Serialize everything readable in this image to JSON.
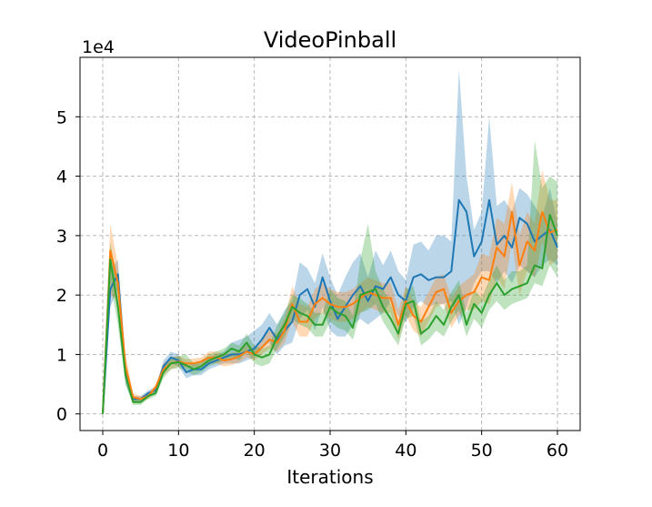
{
  "chart_data": {
    "type": "line",
    "title": "VideoPinball",
    "xlabel": "Iterations",
    "ylabel": "",
    "y_multiplier_label": "1e4",
    "xlim": [
      -3,
      63
    ],
    "ylim": [
      -2800,
      60000
    ],
    "xticks": [
      0,
      10,
      20,
      30,
      40,
      50,
      60
    ],
    "yticks": [
      0,
      10000,
      20000,
      30000,
      40000,
      50000
    ],
    "ytick_labels": [
      "0",
      "1",
      "2",
      "3",
      "4",
      "5"
    ],
    "grid": true,
    "series": [
      {
        "name": "series-blue",
        "color": "#1f77b4",
        "x": [
          0,
          1,
          2,
          3,
          4,
          5,
          6,
          7,
          8,
          9,
          10,
          11,
          12,
          13,
          14,
          15,
          16,
          17,
          18,
          19,
          20,
          21,
          22,
          23,
          24,
          25,
          26,
          27,
          28,
          29,
          30,
          31,
          32,
          33,
          34,
          35,
          36,
          37,
          38,
          39,
          40,
          41,
          42,
          43,
          44,
          45,
          46,
          47,
          48,
          49,
          50,
          51,
          52,
          53,
          54,
          55,
          56,
          57,
          58,
          59,
          60
        ],
        "values": [
          0,
          21000,
          23500,
          7000,
          2500,
          2500,
          3500,
          4000,
          8000,
          9500,
          9000,
          7000,
          7500,
          7500,
          8500,
          9000,
          9500,
          10000,
          10000,
          10500,
          11000,
          12500,
          14500,
          12500,
          14000,
          15500,
          20000,
          21000,
          18000,
          23000,
          19000,
          16000,
          18000,
          20000,
          21500,
          19000,
          21500,
          21000,
          23000,
          20000,
          19000,
          23000,
          23500,
          22500,
          23000,
          23000,
          24000,
          36000,
          34000,
          26500,
          29000,
          36000,
          28500,
          30000,
          28000,
          33000,
          32000,
          29000,
          30000,
          31000,
          28000
        ],
        "lower": [
          0,
          18000,
          21000,
          5000,
          2000,
          2000,
          3000,
          3500,
          7000,
          8500,
          8000,
          6000,
          6500,
          6500,
          7500,
          8000,
          8500,
          8500,
          8500,
          9000,
          9500,
          11000,
          12000,
          10000,
          11500,
          12000,
          16000,
          17500,
          14000,
          18000,
          14000,
          13000,
          13000,
          15000,
          16000,
          15000,
          16000,
          17000,
          19000,
          16500,
          15500,
          18000,
          19000,
          18000,
          18500,
          18500,
          19000,
          15000,
          18000,
          22000,
          24000,
          24000,
          22000,
          24000,
          22000,
          25000,
          24000,
          23000,
          25000,
          26000,
          25000
        ],
        "upper": [
          0,
          24000,
          26000,
          9000,
          3000,
          3000,
          4000,
          4500,
          9000,
          10500,
          10000,
          8000,
          8500,
          8500,
          9500,
          10000,
          10500,
          12000,
          12500,
          13000,
          14000,
          15000,
          17000,
          15000,
          17500,
          19000,
          25500,
          24500,
          22000,
          27000,
          23000,
          20000,
          23000,
          25500,
          27000,
          23000,
          27500,
          25000,
          27500,
          24000,
          22500,
          28500,
          29000,
          27500,
          30000,
          30000,
          29000,
          58000,
          40000,
          31000,
          34000,
          50000,
          35000,
          36000,
          34000,
          38000,
          37000,
          35000,
          33000,
          38000,
          32000
        ]
      },
      {
        "name": "series-orange",
        "color": "#ff7f0e",
        "x": [
          0,
          1,
          2,
          3,
          4,
          5,
          6,
          7,
          8,
          9,
          10,
          11,
          12,
          13,
          14,
          15,
          16,
          17,
          18,
          19,
          20,
          21,
          22,
          23,
          24,
          25,
          26,
          27,
          28,
          29,
          30,
          31,
          32,
          33,
          34,
          35,
          36,
          37,
          38,
          39,
          40,
          41,
          42,
          43,
          44,
          45,
          46,
          47,
          48,
          49,
          50,
          51,
          52,
          53,
          54,
          55,
          56,
          57,
          58,
          59,
          60
        ],
        "values": [
          0,
          27500,
          22000,
          8000,
          2800,
          2500,
          3000,
          4500,
          7500,
          8500,
          8800,
          8500,
          8500,
          8800,
          9500,
          9500,
          9000,
          9200,
          9700,
          10500,
          10000,
          11200,
          12500,
          12000,
          14000,
          18500,
          15500,
          15500,
          18500,
          19500,
          18500,
          18000,
          18000,
          18500,
          19500,
          20500,
          20000,
          19500,
          19500,
          15000,
          19000,
          16500,
          15500,
          18000,
          20500,
          21000,
          17000,
          19000,
          20000,
          20500,
          23000,
          22500,
          28000,
          26500,
          34000,
          25000,
          29000,
          27500,
          34000,
          30500,
          31000
        ],
        "lower": [
          0,
          20000,
          19000,
          6000,
          2000,
          2000,
          2500,
          3800,
          6500,
          7500,
          8000,
          7800,
          7800,
          8000,
          8500,
          8500,
          8000,
          8200,
          8700,
          9500,
          9000,
          10000,
          11000,
          10500,
          12000,
          15500,
          13000,
          13000,
          16000,
          17000,
          16000,
          15500,
          15500,
          16000,
          17000,
          18000,
          17500,
          17000,
          17000,
          12500,
          16500,
          14000,
          13000,
          15500,
          18000,
          18500,
          14500,
          16500,
          17500,
          17500,
          19000,
          18500,
          23000,
          21000,
          29000,
          20000,
          24000,
          23000,
          29000,
          25000,
          26000
        ],
        "upper": [
          0,
          32000,
          25000,
          10000,
          3500,
          3000,
          3500,
          5000,
          8500,
          9500,
          9800,
          9200,
          9300,
          9500,
          10500,
          10500,
          10000,
          10200,
          10700,
          11500,
          11000,
          12500,
          14000,
          13500,
          16000,
          21500,
          18500,
          18000,
          21000,
          22000,
          21000,
          20500,
          20500,
          21000,
          22000,
          23000,
          22500,
          22000,
          22000,
          17500,
          21500,
          19000,
          18000,
          20500,
          23000,
          23500,
          19500,
          21500,
          22500,
          23500,
          27000,
          26500,
          33000,
          32000,
          39000,
          30000,
          34000,
          32000,
          41000,
          36000,
          36000
        ]
      },
      {
        "name": "series-green",
        "color": "#2ca02c",
        "x": [
          0,
          1,
          2,
          3,
          4,
          5,
          6,
          7,
          8,
          9,
          10,
          11,
          12,
          13,
          14,
          15,
          16,
          17,
          18,
          19,
          20,
          21,
          22,
          23,
          24,
          25,
          26,
          27,
          28,
          29,
          30,
          31,
          32,
          33,
          34,
          35,
          36,
          37,
          38,
          39,
          40,
          41,
          42,
          43,
          44,
          45,
          46,
          47,
          48,
          49,
          50,
          51,
          52,
          53,
          54,
          55,
          56,
          57,
          58,
          59,
          60
        ],
        "values": [
          0,
          26000,
          18000,
          6500,
          2000,
          2000,
          3000,
          3500,
          7000,
          8500,
          8700,
          8200,
          7500,
          8000,
          9000,
          9500,
          10000,
          11000,
          10500,
          12000,
          10000,
          9500,
          10000,
          13000,
          15000,
          18000,
          17000,
          16500,
          15000,
          15000,
          18000,
          17000,
          16500,
          14500,
          20000,
          20500,
          21000,
          18000,
          16000,
          13500,
          18500,
          19000,
          13500,
          14500,
          16500,
          15000,
          18000,
          20000,
          15000,
          18500,
          17000,
          20000,
          22000,
          20000,
          21000,
          21500,
          22000,
          25000,
          24500,
          33500,
          30000
        ],
        "lower": [
          0,
          22000,
          15000,
          5000,
          1500,
          1500,
          2500,
          3000,
          6000,
          7500,
          7700,
          7200,
          6500,
          7000,
          8000,
          8500,
          9000,
          9500,
          9000,
          10500,
          8500,
          8000,
          8500,
          11000,
          13000,
          16000,
          15000,
          14500,
          13000,
          13000,
          15500,
          14500,
          14000,
          12500,
          17000,
          17500,
          18500,
          15500,
          13500,
          11500,
          16000,
          16500,
          11500,
          12500,
          14000,
          13000,
          15500,
          17500,
          13000,
          16000,
          14500,
          17500,
          19000,
          17500,
          18500,
          19000,
          19500,
          22000,
          21500,
          25000,
          23000
        ],
        "upper": [
          0,
          29000,
          21000,
          8000,
          2500,
          2500,
          3500,
          4000,
          8000,
          9500,
          9700,
          10000,
          8500,
          9000,
          10000,
          10500,
          11000,
          12000,
          11500,
          13500,
          11500,
          11000,
          11500,
          15000,
          17000,
          20000,
          19500,
          18500,
          17000,
          17000,
          21000,
          19500,
          19000,
          16500,
          26000,
          32000,
          24000,
          21000,
          18500,
          15500,
          21000,
          21500,
          15500,
          16500,
          19000,
          17500,
          20500,
          22500,
          17000,
          21000,
          19500,
          22500,
          25000,
          22500,
          24000,
          24000,
          25000,
          46000,
          38000,
          40000,
          39000
        ]
      }
    ]
  }
}
